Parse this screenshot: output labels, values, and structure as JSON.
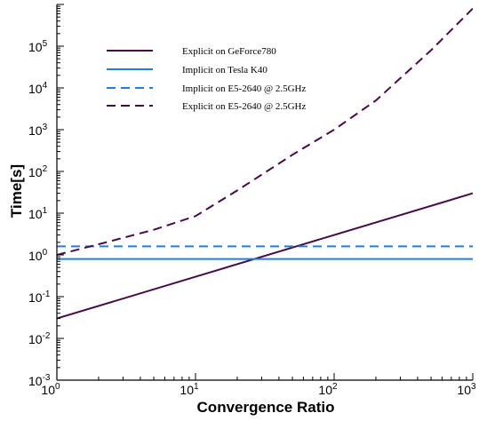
{
  "chart_data": {
    "type": "line",
    "title": "",
    "xlabel": "Convergence Ratio",
    "ylabel": "Time[s]",
    "xscale": "log",
    "yscale": "log",
    "xlim": [
      1,
      1000
    ],
    "ylim": [
      0.001,
      1000000
    ],
    "grid": false,
    "legend_position": "top-left",
    "x_ticks": [
      {
        "base": "10",
        "exp": "0"
      },
      {
        "base": "10",
        "exp": "1"
      },
      {
        "base": "10",
        "exp": "2"
      },
      {
        "base": "10",
        "exp": "3"
      }
    ],
    "y_ticks": [
      {
        "base": "10",
        "exp": "-3"
      },
      {
        "base": "10",
        "exp": "-2"
      },
      {
        "base": "10",
        "exp": "-1"
      },
      {
        "base": "10",
        "exp": "0"
      },
      {
        "base": "10",
        "exp": "1"
      },
      {
        "base": "10",
        "exp": "2"
      },
      {
        "base": "10",
        "exp": "3"
      },
      {
        "base": "10",
        "exp": "4"
      },
      {
        "base": "10",
        "exp": "5"
      }
    ],
    "series": [
      {
        "name": "Explicit on GeForce780",
        "color": "#4a0a4a",
        "dash": "solid",
        "x": [
          1,
          10,
          100,
          1000
        ],
        "y": [
          0.03,
          0.3,
          3,
          30
        ]
      },
      {
        "name": "Implicit on Tesla K40",
        "color": "#1f7fe0",
        "dash": "solid",
        "x": [
          1,
          1000
        ],
        "y": [
          0.8,
          0.8
        ]
      },
      {
        "name": "Implicit on E5-2640 @ 2.5GHz",
        "color": "#1f7fe0",
        "dash": "dashed",
        "x": [
          1,
          1000
        ],
        "y": [
          1.6,
          1.6
        ]
      },
      {
        "name": "Explicit on E5-2640 @ 2.5GHz",
        "color": "#4a0a4a",
        "dash": "dashed",
        "x": [
          1,
          2,
          5,
          10,
          20,
          50,
          100,
          200,
          500,
          1000
        ],
        "y": [
          1.0,
          1.8,
          4.0,
          8.5,
          35,
          250,
          1000,
          5000,
          80000,
          800000
        ]
      }
    ]
  }
}
